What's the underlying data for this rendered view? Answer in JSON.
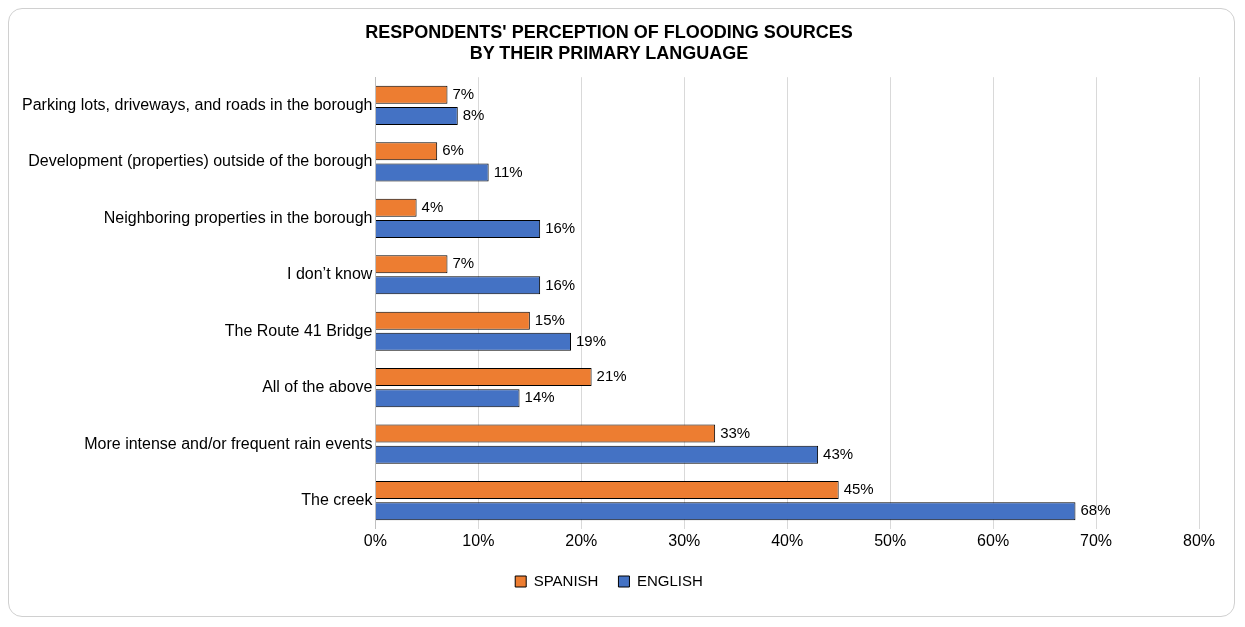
{
  "chart_data": {
    "type": "bar",
    "orientation": "horizontal",
    "title": "RESPONDENTS' PERCEPTION OF FLOODING SOURCES\nBY THEIR PRIMARY LANGUAGE",
    "categories": [
      "Parking lots, driveways, and roads in the borough",
      "Development (properties) outside of the borough",
      "Neighboring properties in the borough",
      "I don’t know",
      "The Route 41 Bridge",
      "All of the above",
      "More intense and/or frequent rain events",
      "The creek"
    ],
    "series": [
      {
        "name": "SPANISH",
        "color": "#ed7d31",
        "values": [
          7,
          6,
          4,
          7,
          15,
          21,
          33,
          45
        ],
        "value_labels": [
          "7%",
          "6%",
          "4%",
          "7%",
          "15%",
          "21%",
          "33%",
          "45%"
        ]
      },
      {
        "name": "ENGLISH",
        "color": "#4472c4",
        "values": [
          8,
          11,
          16,
          16,
          19,
          14,
          43,
          68
        ],
        "value_labels": [
          "8%",
          "11%",
          "16%",
          "16%",
          "19%",
          "14%",
          "43%",
          "68%"
        ]
      }
    ],
    "xlim": [
      0,
      80
    ],
    "xticks": [
      {
        "value": 0,
        "label": "0%"
      },
      {
        "value": 10,
        "label": "10%"
      },
      {
        "value": 20,
        "label": "20%"
      },
      {
        "value": 30,
        "label": "30%"
      },
      {
        "value": 40,
        "label": "40%"
      },
      {
        "value": 50,
        "label": "50%"
      },
      {
        "value": 60,
        "label": "60%"
      },
      {
        "value": 70,
        "label": "70%"
      },
      {
        "value": 80,
        "label": "80%"
      }
    ],
    "grid": "x",
    "legend": "bottom"
  }
}
